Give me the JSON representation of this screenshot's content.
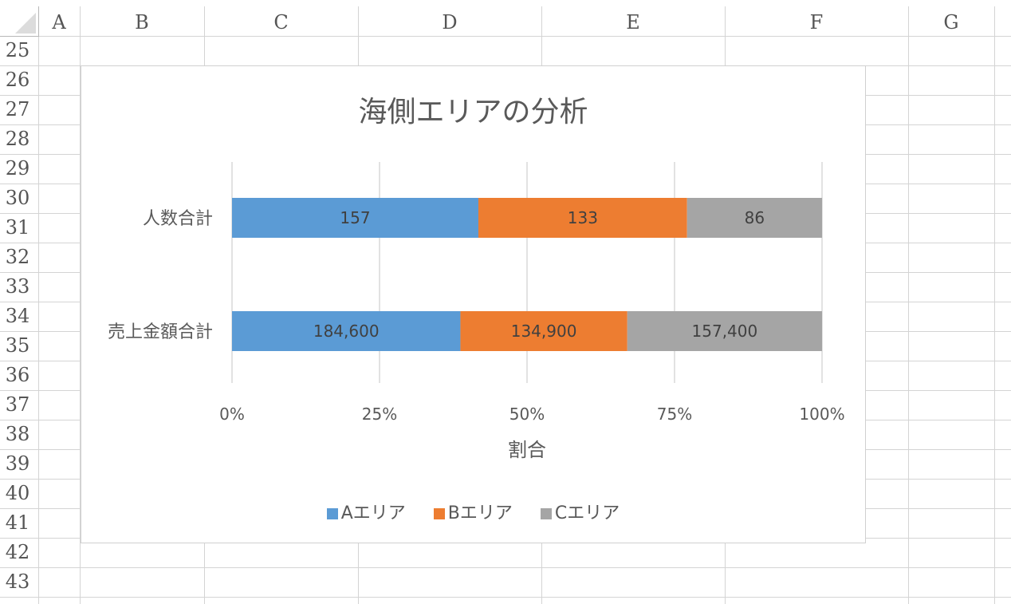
{
  "sheet": {
    "columns": [
      "A",
      "B",
      "C",
      "D",
      "E",
      "F",
      "G"
    ],
    "rows": [
      "25",
      "26",
      "27",
      "28",
      "29",
      "30",
      "31",
      "32",
      "33",
      "34",
      "35",
      "36",
      "37",
      "38",
      "39",
      "40",
      "41",
      "42",
      "43"
    ]
  },
  "chart_data": {
    "type": "bar",
    "orientation": "horizontal",
    "stacked": "percent",
    "title": "海側エリアの分析",
    "xlabel": "割合",
    "ylabel": "",
    "categories": [
      "人数合計",
      "売上金額合計"
    ],
    "series": [
      {
        "name": "Aエリア",
        "color": "#5b9bd5",
        "values": [
          157,
          184600
        ],
        "labels": [
          "157",
          "184,600"
        ]
      },
      {
        "name": "Bエリア",
        "color": "#ed7d31",
        "values": [
          133,
          134900
        ],
        "labels": [
          "133",
          "134,900"
        ]
      },
      {
        "name": "Cエリア",
        "color": "#a5a5a5",
        "values": [
          86,
          157400
        ],
        "labels": [
          "86",
          "157,400"
        ]
      }
    ],
    "xticks": [
      "0%",
      "25%",
      "50%",
      "75%",
      "100%"
    ],
    "xlim": [
      0,
      100
    ],
    "grid": true,
    "legend": "bottom"
  }
}
